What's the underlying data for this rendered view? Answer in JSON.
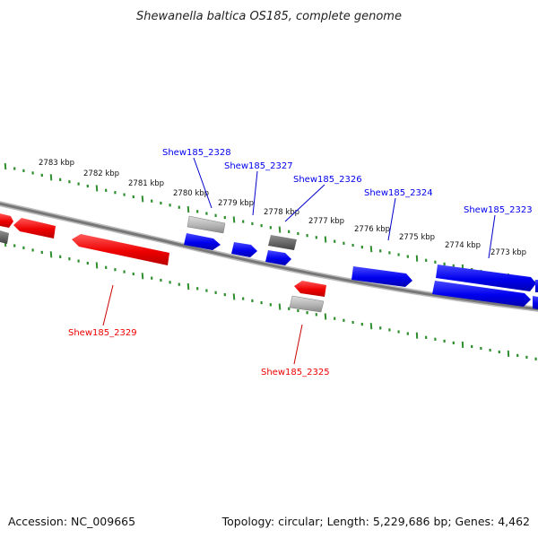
{
  "title": "Shewanella baltica OS185, complete genome",
  "footer": {
    "accession": "Accession: NC_009665",
    "summary": "Topology: circular; Length: 5,229,686 bp; Genes: 4,462"
  },
  "colors": {
    "forward_strand": "#0000ee",
    "reverse_strand": "#ee0000",
    "other_feature": "#9a9a9a",
    "tick": "#2f8f2f",
    "backbone": "#777777"
  },
  "kbp_labels": [
    "2783 kbp",
    "2782 kbp",
    "2781 kbp",
    "2780 kbp",
    "2779 kbp",
    "2778 kbp",
    "2777 kbp",
    "2776 kbp",
    "2775 kbp",
    "2774 kbp",
    "2773 kbp"
  ],
  "gene_labels": {
    "forward": [
      "Shew185_2328",
      "Shew185_2327",
      "Shew185_2326",
      "Shew185_2324",
      "Shew185_2323"
    ],
    "reverse": [
      "Shew185_2329",
      "Shew185_2325"
    ]
  }
}
